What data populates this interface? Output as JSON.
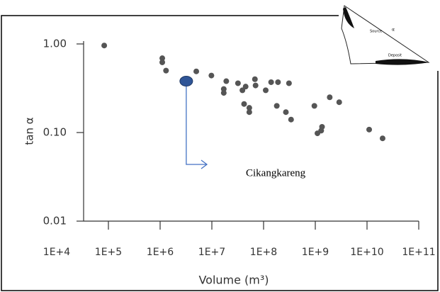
{
  "chart_data": {
    "type": "scatter",
    "x_label": "Volume (m³)",
    "y_label": "tan α",
    "x_log": true,
    "y_log": true,
    "color": "#555555",
    "xlim": [
      10000,
      100000000000
    ],
    "ylim": [
      0.01,
      1
    ],
    "xticks": [
      {
        "value": 10000,
        "label": "1E+4"
      },
      {
        "value": 100000,
        "label": "1E+5"
      },
      {
        "value": 1000000,
        "label": "1E+6"
      },
      {
        "value": 10000000,
        "label": "1E+7"
      },
      {
        "value": 100000000,
        "label": "1E+8"
      },
      {
        "value": 1000000000,
        "label": "1E+9"
      },
      {
        "value": 10000000000,
        "label": "1E+10"
      },
      {
        "value": 100000000000,
        "label": "1E+11"
      }
    ],
    "yticks": [
      {
        "value": 1,
        "label": "1.00"
      },
      {
        "value": 0.1,
        "label": "0.10"
      },
      0.01
    ],
    "x": [
      83000,
      1100000,
      1100000,
      1300000,
      5000000,
      9800000,
      17000000,
      19000000,
      17000000,
      32000000,
      39000000,
      42000000,
      53000000,
      53000000,
      45000000,
      68000000,
      70000000,
      110000000,
      140000000,
      190000000,
      180000000,
      270000000,
      310000000,
      340000000,
      960000000,
      1100000000,
      1300000000,
      1350000000,
      1900000000,
      2900000000,
      11000000000,
      20000000000
    ],
    "y": [
      0.96,
      0.69,
      0.62,
      0.5,
      0.49,
      0.44,
      0.31,
      0.38,
      0.28,
      0.36,
      0.3,
      0.21,
      0.19,
      0.17,
      0.33,
      0.4,
      0.34,
      0.3,
      0.37,
      0.37,
      0.2,
      0.17,
      0.36,
      0.14,
      0.2,
      0.098,
      0.105,
      0.116,
      0.25,
      0.22,
      0.108,
      0.086
    ],
    "highlight": {
      "label": "Cikangkareng",
      "x": 3200000,
      "y": 0.38,
      "color": "#2f5597"
    },
    "inset_labels": [
      "Source",
      "Deposit",
      "α"
    ]
  }
}
